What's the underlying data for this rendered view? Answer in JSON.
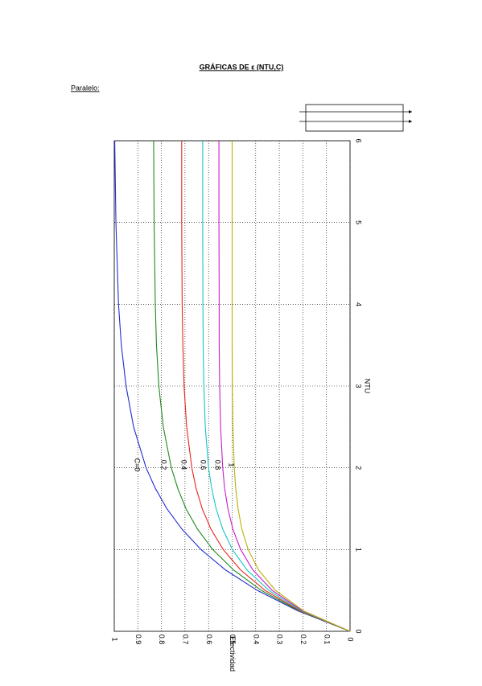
{
  "title": "GRÁFICAS DE ε (NTU,C)",
  "section": "Paralelo:",
  "chart_data": {
    "type": "line",
    "x_label": "NTU",
    "y_label": "Efectividad",
    "x": [
      0,
      0.25,
      0.5,
      0.75,
      1,
      1.25,
      1.5,
      1.75,
      2,
      2.5,
      3,
      3.5,
      4,
      5,
      6
    ],
    "series": [
      {
        "name": "C=0",
        "color": "#1f2fd0",
        "values": [
          0,
          0.221,
          0.393,
          0.528,
          0.632,
          0.713,
          0.777,
          0.826,
          0.865,
          0.918,
          0.95,
          0.97,
          0.982,
          0.993,
          0.998
        ]
      },
      {
        "name": "0.2",
        "color": "#1e8a1e",
        "values": [
          0,
          0.216,
          0.376,
          0.494,
          0.582,
          0.647,
          0.696,
          0.731,
          0.758,
          0.792,
          0.811,
          0.821,
          0.826,
          0.831,
          0.833
        ]
      },
      {
        "name": "0.4",
        "color": "#e8241c",
        "values": [
          0,
          0.211,
          0.36,
          0.464,
          0.538,
          0.59,
          0.627,
          0.653,
          0.671,
          0.693,
          0.704,
          0.709,
          0.712,
          0.714,
          0.714
        ]
      },
      {
        "name": "0.6",
        "color": "#19c4c4",
        "values": [
          0,
          0.206,
          0.344,
          0.437,
          0.499,
          0.54,
          0.568,
          0.587,
          0.6,
          0.614,
          0.62,
          0.623,
          0.624,
          0.625,
          0.625
        ]
      },
      {
        "name": "0.8",
        "color": "#c81ec8",
        "values": [
          0,
          0.201,
          0.33,
          0.412,
          0.464,
          0.497,
          0.518,
          0.532,
          0.54,
          0.549,
          0.553,
          0.555,
          0.555,
          0.556,
          0.556
        ]
      },
      {
        "name": "1",
        "color": "#b8b000",
        "values": [
          0,
          0.197,
          0.316,
          0.388,
          0.432,
          0.459,
          0.475,
          0.485,
          0.491,
          0.497,
          0.499,
          0.5,
          0.5,
          0.5,
          0.5
        ]
      }
    ],
    "xlim": [
      0,
      6
    ],
    "xticks": [
      0,
      1,
      2,
      3,
      4,
      5,
      6
    ],
    "ylim": [
      0,
      1
    ],
    "yticks": [
      0,
      0.1,
      0.2,
      0.3,
      0.4,
      0.5,
      0.6,
      0.7,
      0.8,
      0.9,
      1
    ],
    "grid": true
  }
}
